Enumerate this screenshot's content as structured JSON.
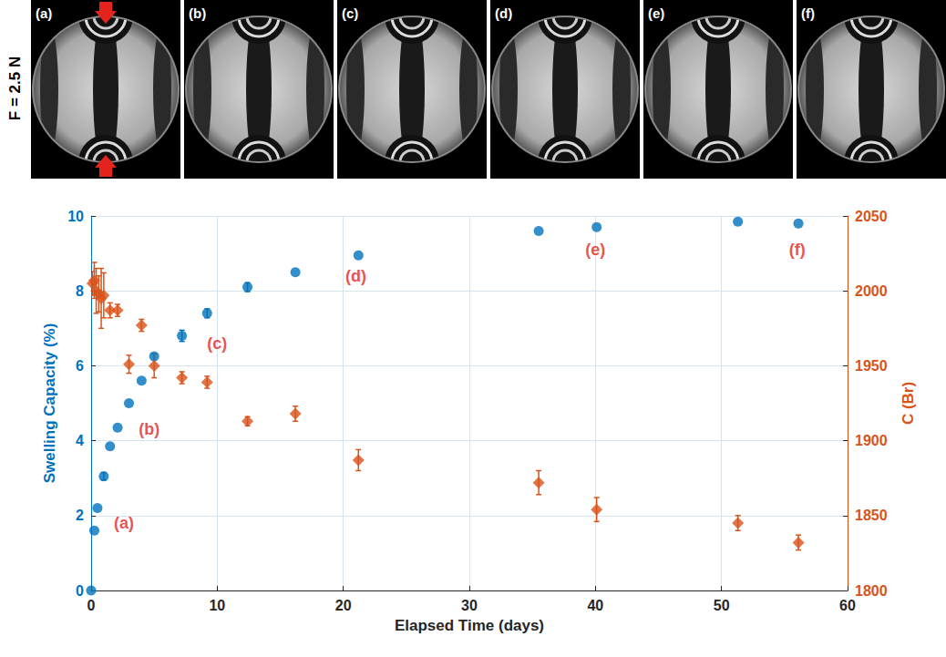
{
  "chart_data": {
    "type": "scatter",
    "x_label": "Elapsed Time (days)",
    "y_label": "Swelling Capacity (%)",
    "y2_label": "C (Br)",
    "xlim": [
      0,
      60
    ],
    "xticks": [
      0,
      10,
      20,
      30,
      40,
      50,
      60
    ],
    "ylim": [
      0,
      10
    ],
    "yticks": [
      0,
      2,
      4,
      6,
      8,
      10
    ],
    "y2lim": [
      1800,
      2050
    ],
    "y2ticks": [
      1800,
      1850,
      1900,
      1950,
      2000,
      2050
    ],
    "grid": true,
    "series": [
      {
        "name": "Swelling Capacity (%)",
        "color": "#0072bd",
        "marker": "circle",
        "x": [
          0,
          0.25,
          0.5,
          1.0,
          1.5,
          2.1,
          3.0,
          4.0,
          5.0,
          7.2,
          9.2,
          12.4,
          16.2,
          21.2,
          35.5,
          40.1,
          51.3,
          56.1
        ],
        "values": [
          0,
          1.6,
          2.2,
          3.05,
          3.85,
          4.35,
          5.0,
          5.6,
          6.25,
          6.8,
          7.4,
          8.1,
          8.5,
          8.95,
          9.6,
          9.7,
          9.85,
          9.8
        ],
        "errors": [
          null,
          null,
          null,
          0.1,
          null,
          null,
          null,
          null,
          null,
          0.15,
          0.12,
          0.12,
          null,
          null,
          null,
          null,
          null,
          null
        ]
      },
      {
        "name": "C (Br)",
        "color": "#d95319",
        "marker": "diamond",
        "axis": "y2",
        "x": [
          0.1,
          0.25,
          0.4,
          0.6,
          0.8,
          1.0,
          1.5,
          2.1,
          3.0,
          4.0,
          5.0,
          7.2,
          9.2,
          12.4,
          16.2,
          21.2,
          35.5,
          40.1,
          51.3,
          56.1
        ],
        "values": [
          2005,
          2007,
          2000,
          1998,
          1995,
          1997,
          1987,
          1987,
          1951,
          1977,
          1950,
          1942,
          1939,
          1913,
          1918,
          1887,
          1872,
          1854,
          1845,
          1832
        ],
        "errors": [
          8,
          12,
          15,
          12,
          20,
          15,
          5,
          4,
          6,
          4,
          8,
          4,
          4,
          3,
          5,
          7,
          8,
          8,
          5,
          5
        ]
      }
    ],
    "annotations": [
      {
        "text": "(a)",
        "x": 2.6,
        "y": 1.8,
        "color": "#e3231c"
      },
      {
        "text": "(b)",
        "x": 4.6,
        "y": 4.3,
        "color": "#e3231c"
      },
      {
        "text": "(c)",
        "x": 10.0,
        "y": 6.6,
        "color": "#e3231c"
      },
      {
        "text": "(d)",
        "x": 21.0,
        "y": 8.4,
        "color": "#e3231c"
      },
      {
        "text": "(e)",
        "x": 40.0,
        "y": 9.1,
        "color": "#e3231c"
      },
      {
        "text": "(f)",
        "x": 56.0,
        "y": 9.1,
        "color": "#e3231c"
      }
    ]
  },
  "panels": {
    "force_label": "F = 2.5 N",
    "labels": [
      "(a)",
      "(b)",
      "(c)",
      "(d)",
      "(e)",
      "(f)"
    ]
  }
}
